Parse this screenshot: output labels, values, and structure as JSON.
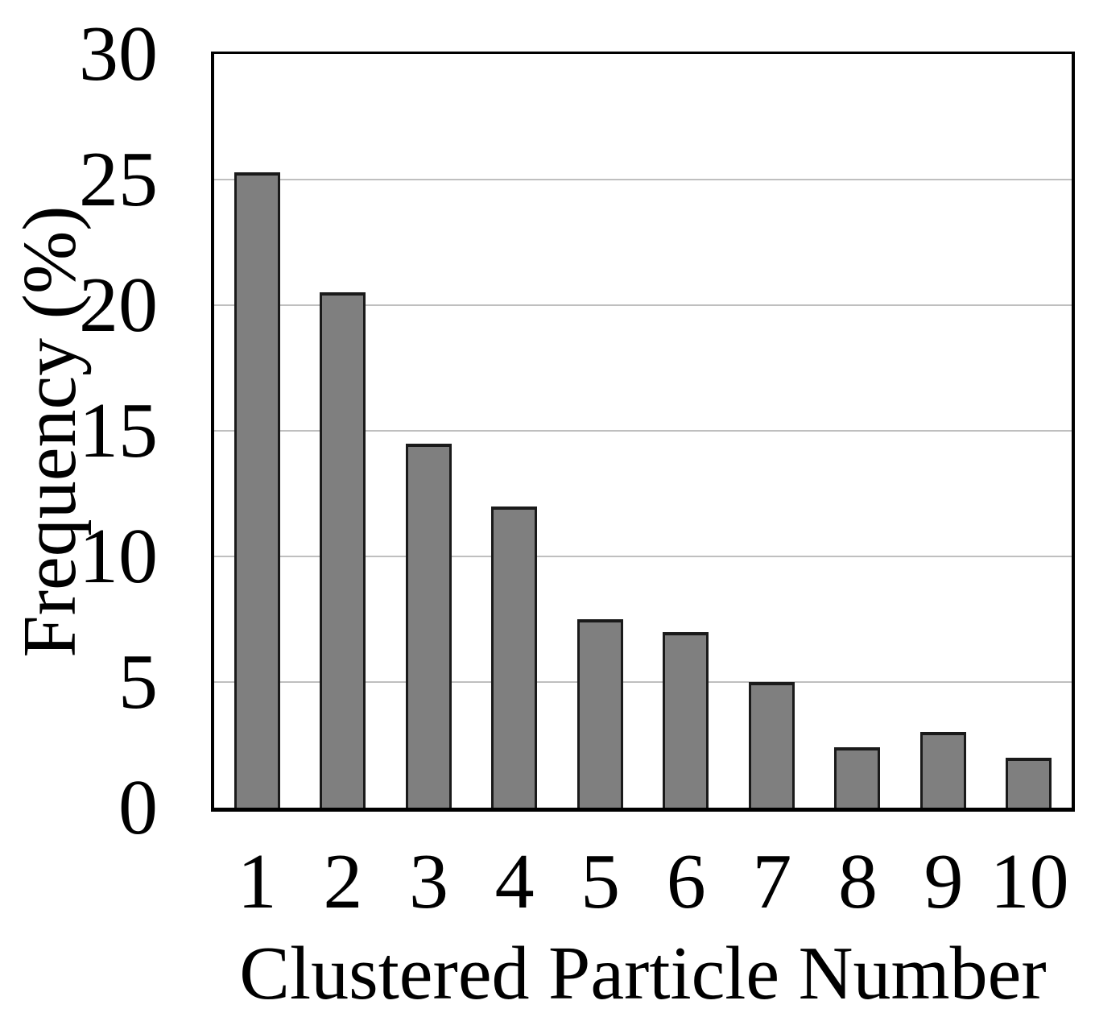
{
  "chart_data": {
    "type": "bar",
    "title": "",
    "xlabel": "Clustered Particle Number",
    "ylabel": "Frequency (%)",
    "categories": [
      "1",
      "2",
      "3",
      "4",
      "5",
      "6",
      "7",
      "8",
      "9",
      "10"
    ],
    "values": [
      25.3,
      20.5,
      14.5,
      12.0,
      7.5,
      7.0,
      5.0,
      2.4,
      3.0,
      2.0
    ],
    "ylim": [
      0,
      30
    ],
    "yticks": [
      0,
      5,
      10,
      15,
      20,
      25,
      30
    ],
    "gridlines": [
      5,
      10,
      15,
      20,
      25
    ],
    "grid": true,
    "legend_position": "none",
    "bar_fill_color": "#7f7f7f",
    "bar_border_color": "#1a1a1a",
    "gridline_color": "#bfbfbf",
    "axis_box_color": "#000000",
    "background_color": "#ffffff"
  }
}
